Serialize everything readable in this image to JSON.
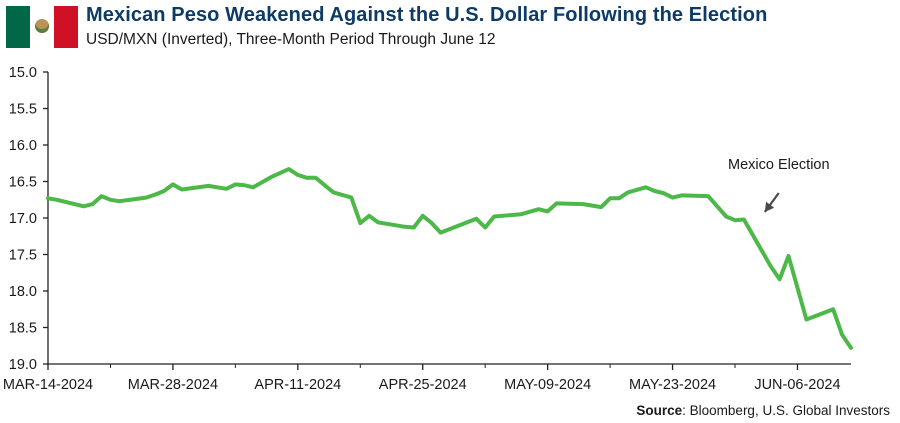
{
  "header": {
    "title": "Mexican Peso Weakened Against the U.S. Dollar Following the Election",
    "subtitle": "USD/MXN (Inverted), Three-Month Period Through June 12",
    "flag_colors": {
      "green": "#006847",
      "white": "#ffffff",
      "red": "#ce1126"
    }
  },
  "footer": {
    "source_label": "Source",
    "source_text": ": Bloomberg, U.S. Global Investors"
  },
  "colors": {
    "line": "#4cb848",
    "axis": "#222222",
    "text": "#1a1a1a",
    "annotation_arrow": "#4a4a4a"
  },
  "chart_data": {
    "type": "line",
    "title": "Mexican Peso Weakened Against the U.S. Dollar Following the Election",
    "subtitle": "USD/MXN (Inverted), Three-Month Period Through June 12",
    "xlabel": "",
    "ylabel": "",
    "y_inverted": true,
    "ylim": [
      15.0,
      19.0
    ],
    "yticks": [
      15.0,
      15.5,
      16.0,
      16.5,
      17.0,
      17.5,
      18.0,
      18.5,
      19.0
    ],
    "ytick_labels": [
      "15.0",
      "15.5",
      "16.0",
      "16.5",
      "17.0",
      "17.5",
      "18.0",
      "18.5",
      "19.0"
    ],
    "xlim": [
      "2024-03-14",
      "2024-06-12"
    ],
    "xticks": [
      "2024-03-14",
      "2024-03-28",
      "2024-04-11",
      "2024-04-25",
      "2024-05-09",
      "2024-05-23",
      "2024-06-06"
    ],
    "xtick_labels": [
      "MAR-14-2024",
      "MAR-28-2024",
      "APR-11-2024",
      "APR-25-2024",
      "MAY-09-2024",
      "MAY-23-2024",
      "JUN-06-2024"
    ],
    "grid": false,
    "series": [
      {
        "color": "#4cb848",
        "points": [
          [
            "2024-03-14",
            16.73
          ],
          [
            "2024-03-15",
            16.75
          ],
          [
            "2024-03-18",
            16.84
          ],
          [
            "2024-03-19",
            16.81
          ],
          [
            "2024-03-20",
            16.7
          ],
          [
            "2024-03-21",
            16.75
          ],
          [
            "2024-03-22",
            16.77
          ],
          [
            "2024-03-25",
            16.72
          ],
          [
            "2024-03-26",
            16.68
          ],
          [
            "2024-03-27",
            16.63
          ],
          [
            "2024-03-28",
            16.54
          ],
          [
            "2024-03-29",
            16.61
          ],
          [
            "2024-04-01",
            16.56
          ],
          [
            "2024-04-03",
            16.6
          ],
          [
            "2024-04-04",
            16.54
          ],
          [
            "2024-04-05",
            16.55
          ],
          [
            "2024-04-06",
            16.58
          ],
          [
            "2024-04-08",
            16.44
          ],
          [
            "2024-04-10",
            16.33
          ],
          [
            "2024-04-11",
            16.41
          ],
          [
            "2024-04-12",
            16.45
          ],
          [
            "2024-04-13",
            16.45
          ],
          [
            "2024-04-15",
            16.65
          ],
          [
            "2024-04-17",
            16.72
          ],
          [
            "2024-04-18",
            17.07
          ],
          [
            "2024-04-19",
            16.97
          ],
          [
            "2024-04-20",
            17.06
          ],
          [
            "2024-04-22",
            17.1
          ],
          [
            "2024-04-23",
            17.12
          ],
          [
            "2024-04-24",
            17.13
          ],
          [
            "2024-04-25",
            16.97
          ],
          [
            "2024-04-26",
            17.07
          ],
          [
            "2024-04-27",
            17.2
          ],
          [
            "2024-05-01",
            17.01
          ],
          [
            "2024-05-02",
            17.13
          ],
          [
            "2024-05-03",
            16.98
          ],
          [
            "2024-05-06",
            16.95
          ],
          [
            "2024-05-08",
            16.88
          ],
          [
            "2024-05-09",
            16.91
          ],
          [
            "2024-05-10",
            16.8
          ],
          [
            "2024-05-13",
            16.81
          ],
          [
            "2024-05-14",
            16.83
          ],
          [
            "2024-05-15",
            16.85
          ],
          [
            "2024-05-16",
            16.73
          ],
          [
            "2024-05-17",
            16.73
          ],
          [
            "2024-05-18",
            16.65
          ],
          [
            "2024-05-20",
            16.58
          ],
          [
            "2024-05-21",
            16.63
          ],
          [
            "2024-05-22",
            16.66
          ],
          [
            "2024-05-23",
            16.72
          ],
          [
            "2024-05-24",
            16.69
          ],
          [
            "2024-05-27",
            16.7
          ],
          [
            "2024-05-29",
            16.98
          ],
          [
            "2024-05-30",
            17.03
          ],
          [
            "2024-05-31",
            17.02
          ],
          [
            "2024-06-03",
            17.66
          ],
          [
            "2024-06-04",
            17.84
          ],
          [
            "2024-06-05",
            17.52
          ],
          [
            "2024-06-07",
            18.39
          ],
          [
            "2024-06-10",
            18.25
          ],
          [
            "2024-06-11",
            18.6
          ],
          [
            "2024-06-12",
            18.78
          ]
        ]
      }
    ],
    "annotations": [
      {
        "text": "Mexico Election",
        "x": "2024-06-02",
        "y": 17.0
      }
    ],
    "source": "Source: Bloomberg, U.S. Global Investors"
  }
}
